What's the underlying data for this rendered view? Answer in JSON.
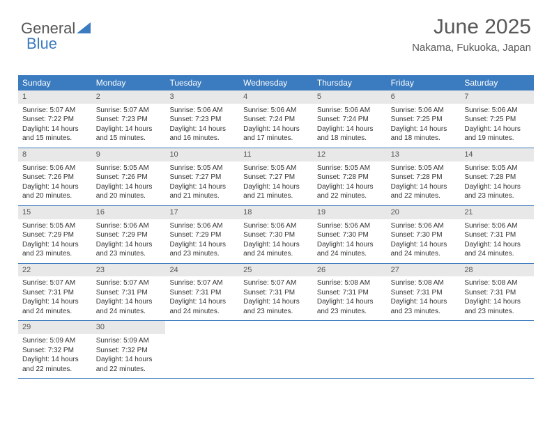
{
  "logo": {
    "text1": "General",
    "text2": "Blue"
  },
  "header": {
    "title": "June 2025",
    "subtitle": "Nakama, Fukuoka, Japan"
  },
  "colors": {
    "accent": "#3b7bbf",
    "headerText": "#595959",
    "cellNumBg": "#e8e8e8"
  },
  "dayNames": [
    "Sunday",
    "Monday",
    "Tuesday",
    "Wednesday",
    "Thursday",
    "Friday",
    "Saturday"
  ],
  "days": [
    {
      "n": "1",
      "sr": "Sunrise: 5:07 AM",
      "ss": "Sunset: 7:22 PM",
      "d1": "Daylight: 14 hours",
      "d2": "and 15 minutes."
    },
    {
      "n": "2",
      "sr": "Sunrise: 5:07 AM",
      "ss": "Sunset: 7:23 PM",
      "d1": "Daylight: 14 hours",
      "d2": "and 15 minutes."
    },
    {
      "n": "3",
      "sr": "Sunrise: 5:06 AM",
      "ss": "Sunset: 7:23 PM",
      "d1": "Daylight: 14 hours",
      "d2": "and 16 minutes."
    },
    {
      "n": "4",
      "sr": "Sunrise: 5:06 AM",
      "ss": "Sunset: 7:24 PM",
      "d1": "Daylight: 14 hours",
      "d2": "and 17 minutes."
    },
    {
      "n": "5",
      "sr": "Sunrise: 5:06 AM",
      "ss": "Sunset: 7:24 PM",
      "d1": "Daylight: 14 hours",
      "d2": "and 18 minutes."
    },
    {
      "n": "6",
      "sr": "Sunrise: 5:06 AM",
      "ss": "Sunset: 7:25 PM",
      "d1": "Daylight: 14 hours",
      "d2": "and 18 minutes."
    },
    {
      "n": "7",
      "sr": "Sunrise: 5:06 AM",
      "ss": "Sunset: 7:25 PM",
      "d1": "Daylight: 14 hours",
      "d2": "and 19 minutes."
    },
    {
      "n": "8",
      "sr": "Sunrise: 5:06 AM",
      "ss": "Sunset: 7:26 PM",
      "d1": "Daylight: 14 hours",
      "d2": "and 20 minutes."
    },
    {
      "n": "9",
      "sr": "Sunrise: 5:05 AM",
      "ss": "Sunset: 7:26 PM",
      "d1": "Daylight: 14 hours",
      "d2": "and 20 minutes."
    },
    {
      "n": "10",
      "sr": "Sunrise: 5:05 AM",
      "ss": "Sunset: 7:27 PM",
      "d1": "Daylight: 14 hours",
      "d2": "and 21 minutes."
    },
    {
      "n": "11",
      "sr": "Sunrise: 5:05 AM",
      "ss": "Sunset: 7:27 PM",
      "d1": "Daylight: 14 hours",
      "d2": "and 21 minutes."
    },
    {
      "n": "12",
      "sr": "Sunrise: 5:05 AM",
      "ss": "Sunset: 7:28 PM",
      "d1": "Daylight: 14 hours",
      "d2": "and 22 minutes."
    },
    {
      "n": "13",
      "sr": "Sunrise: 5:05 AM",
      "ss": "Sunset: 7:28 PM",
      "d1": "Daylight: 14 hours",
      "d2": "and 22 minutes."
    },
    {
      "n": "14",
      "sr": "Sunrise: 5:05 AM",
      "ss": "Sunset: 7:28 PM",
      "d1": "Daylight: 14 hours",
      "d2": "and 23 minutes."
    },
    {
      "n": "15",
      "sr": "Sunrise: 5:05 AM",
      "ss": "Sunset: 7:29 PM",
      "d1": "Daylight: 14 hours",
      "d2": "and 23 minutes."
    },
    {
      "n": "16",
      "sr": "Sunrise: 5:06 AM",
      "ss": "Sunset: 7:29 PM",
      "d1": "Daylight: 14 hours",
      "d2": "and 23 minutes."
    },
    {
      "n": "17",
      "sr": "Sunrise: 5:06 AM",
      "ss": "Sunset: 7:29 PM",
      "d1": "Daylight: 14 hours",
      "d2": "and 23 minutes."
    },
    {
      "n": "18",
      "sr": "Sunrise: 5:06 AM",
      "ss": "Sunset: 7:30 PM",
      "d1": "Daylight: 14 hours",
      "d2": "and 24 minutes."
    },
    {
      "n": "19",
      "sr": "Sunrise: 5:06 AM",
      "ss": "Sunset: 7:30 PM",
      "d1": "Daylight: 14 hours",
      "d2": "and 24 minutes."
    },
    {
      "n": "20",
      "sr": "Sunrise: 5:06 AM",
      "ss": "Sunset: 7:30 PM",
      "d1": "Daylight: 14 hours",
      "d2": "and 24 minutes."
    },
    {
      "n": "21",
      "sr": "Sunrise: 5:06 AM",
      "ss": "Sunset: 7:31 PM",
      "d1": "Daylight: 14 hours",
      "d2": "and 24 minutes."
    },
    {
      "n": "22",
      "sr": "Sunrise: 5:07 AM",
      "ss": "Sunset: 7:31 PM",
      "d1": "Daylight: 14 hours",
      "d2": "and 24 minutes."
    },
    {
      "n": "23",
      "sr": "Sunrise: 5:07 AM",
      "ss": "Sunset: 7:31 PM",
      "d1": "Daylight: 14 hours",
      "d2": "and 24 minutes."
    },
    {
      "n": "24",
      "sr": "Sunrise: 5:07 AM",
      "ss": "Sunset: 7:31 PM",
      "d1": "Daylight: 14 hours",
      "d2": "and 24 minutes."
    },
    {
      "n": "25",
      "sr": "Sunrise: 5:07 AM",
      "ss": "Sunset: 7:31 PM",
      "d1": "Daylight: 14 hours",
      "d2": "and 23 minutes."
    },
    {
      "n": "26",
      "sr": "Sunrise: 5:08 AM",
      "ss": "Sunset: 7:31 PM",
      "d1": "Daylight: 14 hours",
      "d2": "and 23 minutes."
    },
    {
      "n": "27",
      "sr": "Sunrise: 5:08 AM",
      "ss": "Sunset: 7:31 PM",
      "d1": "Daylight: 14 hours",
      "d2": "and 23 minutes."
    },
    {
      "n": "28",
      "sr": "Sunrise: 5:08 AM",
      "ss": "Sunset: 7:31 PM",
      "d1": "Daylight: 14 hours",
      "d2": "and 23 minutes."
    },
    {
      "n": "29",
      "sr": "Sunrise: 5:09 AM",
      "ss": "Sunset: 7:32 PM",
      "d1": "Daylight: 14 hours",
      "d2": "and 22 minutes."
    },
    {
      "n": "30",
      "sr": "Sunrise: 5:09 AM",
      "ss": "Sunset: 7:32 PM",
      "d1": "Daylight: 14 hours",
      "d2": "and 22 minutes."
    }
  ],
  "layout": {
    "columns": 7,
    "rows": 5,
    "firstDayOffset": 0,
    "trailingEmpty": 5
  }
}
